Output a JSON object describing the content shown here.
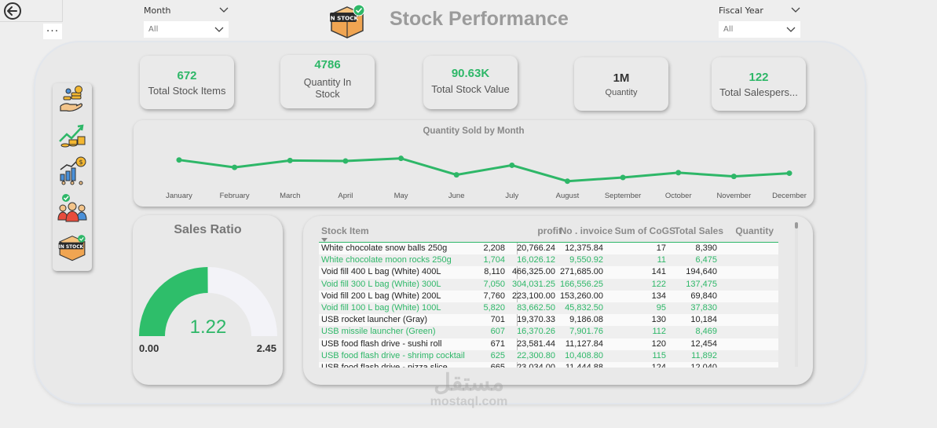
{
  "header": {
    "title": "Stock Performance",
    "month_slicer": {
      "label": "Month",
      "value": "All"
    },
    "fiscal_slicer": {
      "label": "Fiscal Year",
      "value": "All"
    },
    "more_label": "···",
    "logo_text": "IN STOCK"
  },
  "nav": {
    "items": [
      "money-hand-icon",
      "growth-chart-icon",
      "analytics-icon",
      "team-icon",
      "in-stock-icon"
    ],
    "stock_badge": "IN STOCK"
  },
  "kpis": [
    {
      "value": "672",
      "label": "Total Stock Items",
      "value_color": "#2eb768"
    },
    {
      "value": "4786",
      "label": "Quantity In Stock",
      "value_color": "#2eb768"
    },
    {
      "value": "90.63K",
      "label": "Total Stock Value",
      "value_color": "#2eb768"
    },
    {
      "value": "1M",
      "label": "Quantity",
      "value_color": "#333333"
    },
    {
      "value": "122",
      "label": "Total Salespers...",
      "value_color": "#2eb768"
    }
  ],
  "chart_data": {
    "type": "line",
    "title": "Quantity Sold by Month",
    "categories": [
      "January",
      "February",
      "March",
      "April",
      "May",
      "June",
      "July",
      "August",
      "September",
      "October",
      "November",
      "December"
    ],
    "values": [
      76,
      62,
      75,
      74,
      79,
      48,
      66,
      36,
      43,
      52,
      45,
      51
    ],
    "ylim": [
      0,
      100
    ],
    "color": "#2eb768",
    "grid": false
  },
  "gauge": {
    "title": "Sales Ratio",
    "value": 1.22,
    "value_label": "1.22",
    "min_label": "0.00",
    "max_label": "2.45",
    "min": 0,
    "max": 2.45,
    "fill_color": "#2ebe6a",
    "track_color": "#f3f3f8"
  },
  "table": {
    "columns": [
      "Stock Item",
      "profit",
      "No . invoice",
      "Sum of CoGS",
      "Total Sales",
      "Quantity"
    ],
    "rows": [
      [
        "White chocolate snow balls 250g",
        "8,390",
        "17",
        "12,375.84",
        "20,766.24",
        "2,208"
      ],
      [
        "White chocolate moon rocks 250g",
        "6,475",
        "11",
        "9,550.92",
        "16,026.12",
        "1,704"
      ],
      [
        "Void fill 400 L bag (White) 400L",
        "194,640",
        "141",
        "271,685.00",
        "466,325.00",
        "8,110"
      ],
      [
        "Void fill 300 L bag (White) 300L",
        "137,475",
        "122",
        "166,556.25",
        "304,031.25",
        "7,050"
      ],
      [
        "Void fill 200 L bag (White) 200L",
        "69,840",
        "134",
        "153,260.00",
        "223,100.00",
        "7,760"
      ],
      [
        "Void fill 100 L bag (White) 100L",
        "37,830",
        "95",
        "45,832.50",
        "83,662.50",
        "5,820"
      ],
      [
        "USB rocket launcher (Gray)",
        "10,184",
        "130",
        "9,186.08",
        "19,370.33",
        "701"
      ],
      [
        "USB missile launcher (Green)",
        "8,469",
        "112",
        "7,901.76",
        "16,370.26",
        "607"
      ],
      [
        "USB food flash drive - sushi roll",
        "12,454",
        "120",
        "11,127.84",
        "23,581.44",
        "671"
      ],
      [
        "USB food flash drive - shrimp cocktail",
        "11,892",
        "115",
        "10,408.80",
        "22,300.80",
        "625"
      ],
      [
        "USB food flash drive - pizza slice",
        "12,040",
        "124",
        "11,444.88",
        "23,034.00",
        "665"
      ]
    ],
    "green_rows": [
      1,
      3,
      5,
      7,
      9
    ]
  },
  "watermark": {
    "arabic": "مستقل",
    "latin": "mostaql.com"
  }
}
